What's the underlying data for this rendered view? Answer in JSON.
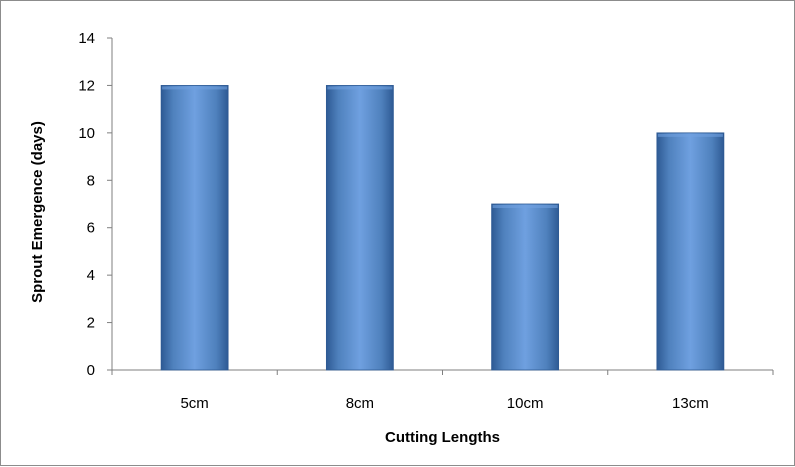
{
  "chart_data": {
    "type": "bar",
    "title": "",
    "xlabel": "Cutting Lengths",
    "ylabel": "Sprout Emergence (days)",
    "categories": [
      "5cm",
      "8cm",
      "10cm",
      "13cm"
    ],
    "values": [
      12,
      12,
      7,
      10
    ],
    "ylim": [
      0,
      14
    ],
    "yticks": [
      0,
      2,
      4,
      6,
      8,
      10,
      12,
      14
    ],
    "grid": false,
    "legend": "none",
    "bar_color": "#4f81bd",
    "bar_highlight": "#6fa0e0",
    "bar_shadow": "#2e5a94"
  }
}
